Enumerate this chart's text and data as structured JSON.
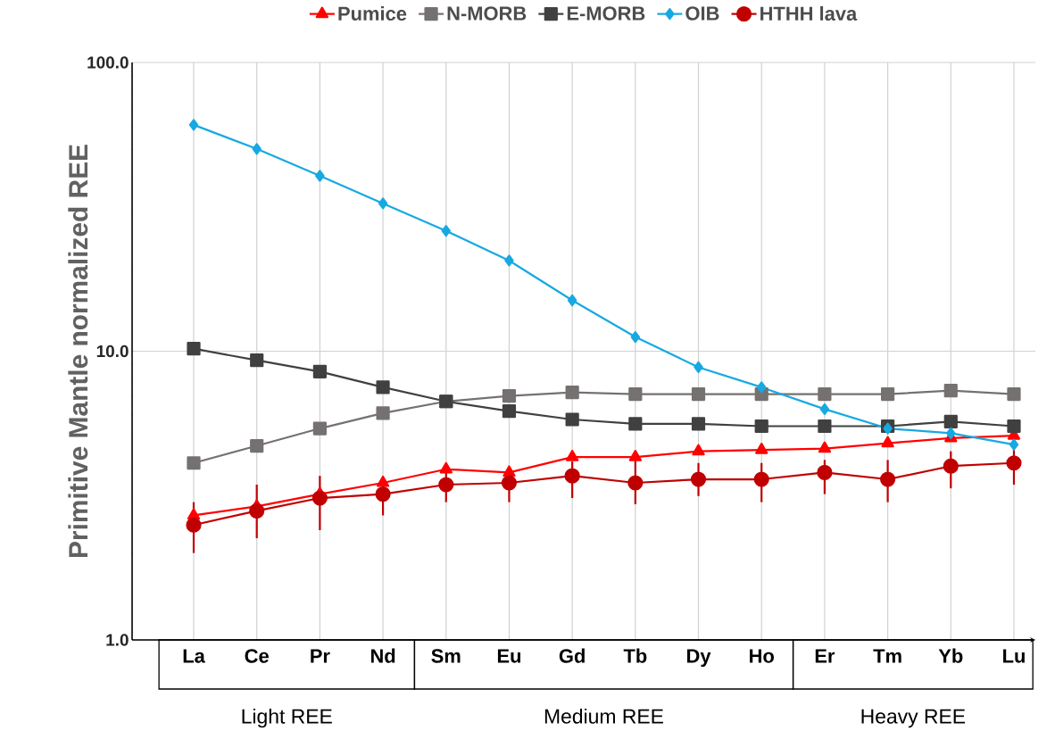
{
  "chart_data": {
    "type": "line",
    "ylabel": "Primitive Mantle normalized REE",
    "categories": [
      "La",
      "Ce",
      "Pr",
      "Nd",
      "Sm",
      "Eu",
      "Gd",
      "Tb",
      "Dy",
      "Ho",
      "Er",
      "Tm",
      "Yb",
      "Lu"
    ],
    "log": "y",
    "ylim": [
      1,
      100
    ],
    "yticks": [
      {
        "value": 1,
        "label": "1.0"
      },
      {
        "value": 10,
        "label": "10.0"
      },
      {
        "value": 100,
        "label": "100.0"
      }
    ],
    "grid": true,
    "legend": "top",
    "series": [
      {
        "name": "Pumice",
        "color": "#ff0000",
        "marker": "triangle",
        "values": [
          2.7,
          2.9,
          3.2,
          3.5,
          3.9,
          3.8,
          4.3,
          4.3,
          4.5,
          4.55,
          4.6,
          4.8,
          5.0,
          5.1
        ]
      },
      {
        "name": "N-MORB",
        "color": "#767171",
        "marker": "square",
        "values": [
          4.1,
          4.7,
          5.4,
          6.1,
          6.7,
          7.0,
          7.2,
          7.1,
          7.1,
          7.1,
          7.1,
          7.1,
          7.3,
          7.1
        ]
      },
      {
        "name": "E-MORB",
        "color": "#404040",
        "marker": "square",
        "values": [
          10.2,
          9.3,
          8.5,
          7.5,
          6.7,
          6.2,
          5.8,
          5.6,
          5.6,
          5.5,
          5.5,
          5.5,
          5.7,
          5.5
        ]
      },
      {
        "name": "OIB",
        "color": "#17a9e1",
        "marker": "diamond",
        "values": [
          60.8,
          50.2,
          40.5,
          32.5,
          26.1,
          20.6,
          15.0,
          11.2,
          8.8,
          7.5,
          6.3,
          5.4,
          5.2,
          4.75
        ]
      },
      {
        "name": "HTHH lava",
        "color": "#c00000",
        "marker": "circle",
        "values": [
          2.5,
          2.8,
          3.1,
          3.2,
          3.45,
          3.5,
          3.7,
          3.5,
          3.6,
          3.6,
          3.8,
          3.6,
          4.0,
          4.1
        ],
        "errors": [
          [
            2.0,
            3.0
          ],
          [
            2.25,
            3.45
          ],
          [
            2.4,
            3.7
          ],
          [
            2.7,
            3.6
          ],
          [
            3.0,
            3.97
          ],
          [
            3.0,
            3.9
          ],
          [
            3.1,
            4.15
          ],
          [
            2.95,
            4.3
          ],
          [
            3.15,
            4.1
          ],
          [
            3.0,
            4.1
          ],
          [
            3.2,
            4.2
          ],
          [
            3.0,
            4.2
          ],
          [
            3.35,
            4.5
          ],
          [
            3.45,
            4.55
          ]
        ]
      }
    ],
    "annotations": [
      "Light REE",
      "Medium REE",
      "Heavy REE"
    ]
  }
}
